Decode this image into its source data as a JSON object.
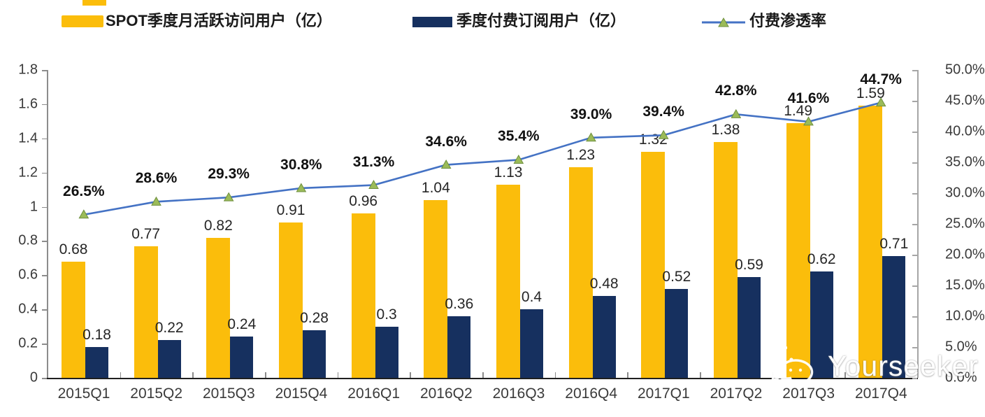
{
  "legend": {
    "mau_label": "SPOT季度月活跃访问用户（亿）",
    "subs_label": "季度付费订阅用户（亿）",
    "penetration_label": "付费渗透率"
  },
  "colors": {
    "mau_bar": "#FBBD0B",
    "subs_bar": "#16305F",
    "line": "#4472C4",
    "marker_fill": "#9BBB59",
    "marker_edge": "#6E8F3D",
    "axis_left": "#8c8c8c",
    "axis_right": "#A6A6A6",
    "axis_bottom": "#1F1F1F"
  },
  "watermark": {
    "text": "Yourseeker",
    "icon": "wechat-icon"
  },
  "chart_data": {
    "type": "bar",
    "subtype": "grouped bars with secondary-axis line",
    "title": "",
    "categories": [
      "2015Q1",
      "2015Q2",
      "2015Q3",
      "2015Q4",
      "2016Q1",
      "2016Q2",
      "2016Q3",
      "2016Q4",
      "2017Q1",
      "2017Q2",
      "2017Q3",
      "2017Q4"
    ],
    "series": [
      {
        "name": "SPOT季度月活跃访问用户（亿）",
        "type": "bar",
        "axis": "left",
        "values": [
          0.68,
          0.77,
          0.82,
          0.91,
          0.96,
          1.04,
          1.13,
          1.23,
          1.32,
          1.38,
          1.49,
          1.59
        ],
        "labels": [
          "0.68",
          "0.77",
          "0.82",
          "0.91",
          "0.96",
          "1.04",
          "1.13",
          "1.23",
          "1.32",
          "1.38",
          "1.49",
          "1.59"
        ]
      },
      {
        "name": "季度付费订阅用户（亿）",
        "type": "bar",
        "axis": "left",
        "values": [
          0.18,
          0.22,
          0.24,
          0.28,
          0.3,
          0.36,
          0.4,
          0.48,
          0.52,
          0.59,
          0.62,
          0.71
        ],
        "labels": [
          "0.18",
          "0.22",
          "0.24",
          "0.28",
          "0.3",
          "0.36",
          "0.4",
          "0.48",
          "0.52",
          "0.59",
          "0.62",
          "0.71"
        ]
      },
      {
        "name": "付费渗透率",
        "type": "line",
        "axis": "right",
        "values": [
          26.5,
          28.6,
          29.3,
          30.8,
          31.3,
          34.6,
          35.4,
          39.0,
          39.4,
          42.8,
          41.6,
          44.7
        ],
        "labels": [
          "26.5%",
          "28.6%",
          "29.3%",
          "30.8%",
          "31.3%",
          "34.6%",
          "35.4%",
          "39.0%",
          "39.4%",
          "42.8%",
          "41.6%",
          "44.7%"
        ]
      }
    ],
    "left_axis": {
      "min": 0,
      "max": 1.8,
      "tick_labels": [
        "1.8",
        "1.6",
        "1.4",
        "1.2",
        "1",
        "0.8",
        "0.6",
        "0.4",
        "0.2",
        "0"
      ]
    },
    "right_axis": {
      "min": 0,
      "max": 50,
      "tick_labels": [
        "50.0%",
        "45.0%",
        "40.0%",
        "35.0%",
        "30.0%",
        "25.0%",
        "20.0%",
        "15.0%",
        "10.0%",
        "5.0%",
        "0.0%"
      ]
    },
    "legend_position": "top",
    "grid": false
  }
}
